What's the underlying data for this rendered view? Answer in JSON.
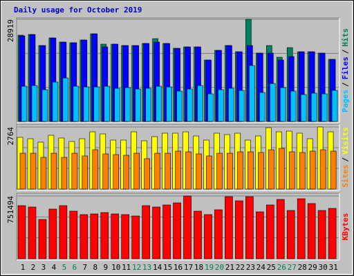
{
  "title": "Daily usage for October 2019",
  "legend_separator": "/",
  "chart_data": [
    {
      "type": "bar",
      "ylim": [
        0,
        28919
      ],
      "yticks": [
        28919
      ],
      "series": [
        {
          "name": "Hits",
          "color": "#00805C",
          "values": [
            24425,
            24620,
            21494,
            23643,
            22471,
            22276,
            23057,
            24815,
            21885,
            21885,
            21494,
            21494,
            22080,
            23448,
            22080,
            20712,
            21103,
            21103,
            17390,
            20126,
            21494,
            19735,
            28919,
            19345,
            21494,
            18172,
            20907,
            19735,
            19735,
            19345,
            17586
          ]
        },
        {
          "name": "Files",
          "color": "#0000FF",
          "values": [
            24230,
            24620,
            21494,
            23643,
            22471,
            22276,
            23057,
            24815,
            21103,
            21885,
            21494,
            21494,
            22080,
            22471,
            22080,
            20712,
            21103,
            21103,
            17390,
            20126,
            21494,
            19735,
            21494,
            19345,
            19345,
            17390,
            18367,
            19735,
            19735,
            19345,
            17586
          ]
        },
        {
          "name": "Pages",
          "color": "#00C0FF",
          "values": [
            9965,
            10161,
            8988,
            11138,
            12310,
            9965,
            9770,
            9770,
            9965,
            9379,
            9575,
            9184,
            9379,
            9965,
            9770,
            8598,
            9184,
            10161,
            7816,
            8988,
            9379,
            8793,
            15827,
            8207,
            10747,
            9575,
            8598,
            7621,
            8011,
            7816,
            8793
          ]
        }
      ]
    },
    {
      "type": "bar",
      "ylim": [
        0,
        2764
      ],
      "yticks": [
        2764
      ],
      "series": [
        {
          "name": "Visits",
          "color": "#FFFF00",
          "values": [
            2303,
            2241,
            2088,
            2395,
            2272,
            2118,
            2241,
            2548,
            2456,
            2180,
            2180,
            2548,
            2149,
            2333,
            2487,
            2487,
            2548,
            2364,
            2180,
            2487,
            2425,
            2487,
            2180,
            2364,
            2732,
            2548,
            2579,
            2487,
            2241,
            2764,
            2548
          ]
        },
        {
          "name": "Sites",
          "color": "#FF8000",
          "values": [
            1596,
            1596,
            1412,
            1596,
            1412,
            1596,
            1474,
            1750,
            1566,
            1535,
            1504,
            1596,
            1351,
            1596,
            1596,
            1689,
            1658,
            1566,
            1474,
            1596,
            1596,
            1658,
            1658,
            1627,
            1750,
            1811,
            1658,
            1627,
            1689,
            1750,
            1689
          ]
        }
      ]
    },
    {
      "type": "bar",
      "ylim": [
        0,
        751494
      ],
      "yticks": [
        751494
      ],
      "categories": [
        1,
        2,
        3,
        4,
        5,
        6,
        7,
        8,
        9,
        10,
        11,
        12,
        13,
        14,
        15,
        16,
        17,
        18,
        19,
        20,
        21,
        22,
        23,
        24,
        25,
        26,
        27,
        28,
        29,
        30,
        31
      ],
      "category_colors": [
        "#000000",
        "#000000",
        "#000000",
        "#000000",
        "#00805C",
        "#00805C",
        "#000000",
        "#000000",
        "#000000",
        "#000000",
        "#000000",
        "#00805C",
        "#00805C",
        "#000000",
        "#000000",
        "#000000",
        "#000000",
        "#000000",
        "#00805C",
        "#00805C",
        "#000000",
        "#000000",
        "#000000",
        "#000000",
        "#000000",
        "#00805C",
        "#00805C",
        "#000000",
        "#000000",
        "#000000",
        "#000000"
      ],
      "series": [
        {
          "name": "KBytes",
          "color": "#FF0000",
          "values": [
            635866,
            619350,
            470706,
            594576,
            635866,
            569802,
            528512,
            536770,
            553286,
            536770,
            528512,
            511996,
            635866,
            619350,
            644124,
            668898,
            751494,
            569802,
            528512,
            586318,
            743236,
            693672,
            743236,
            561544,
            644124,
            710188,
            578060,
            718446,
            660640,
            578060,
            602834
          ]
        }
      ]
    }
  ]
}
